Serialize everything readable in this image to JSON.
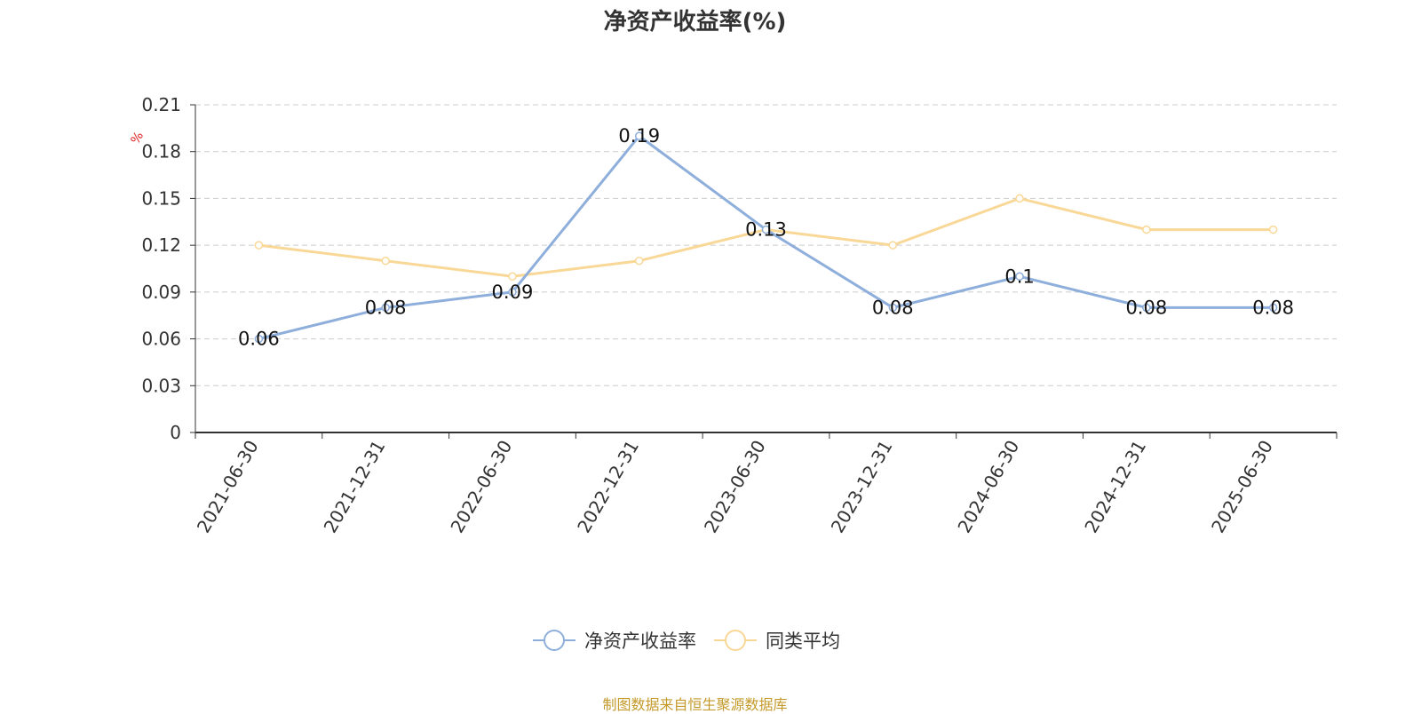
{
  "title": "净资产收益率(%)",
  "source_note": "制图数据来自恒生聚源数据库",
  "colors": {
    "series1": "#8eaedb",
    "series2": "#f9d897",
    "unit": "#e02020",
    "axis": "#333333",
    "grid": "#cccccc"
  },
  "chart_data": {
    "type": "line",
    "title": "净资产收益率(%)",
    "ylabel": "%",
    "x": [
      "2021-06-30",
      "2021-12-31",
      "2022-06-30",
      "2022-12-31",
      "2023-06-30",
      "2023-12-31",
      "2024-06-30",
      "2024-12-31",
      "2025-06-30"
    ],
    "yticks": [
      "0",
      "0.03",
      "0.06",
      "0.09",
      "0.12",
      "0.15",
      "0.18",
      "0.21"
    ],
    "ylim": [
      0,
      0.21
    ],
    "grid": true,
    "legend_position": "bottom-center",
    "series": [
      {
        "name": "净资产收益率",
        "values": [
          0.06,
          0.08,
          0.09,
          0.19,
          0.13,
          0.08,
          0.1,
          0.08,
          0.08
        ],
        "labels": [
          "0.06",
          "0.08",
          "0.09",
          "0.19",
          "0.13",
          "0.08",
          "0.1",
          "0.08",
          "0.08"
        ]
      },
      {
        "name": "同类平均",
        "values": [
          0.12,
          0.11,
          0.1,
          0.11,
          0.13,
          0.12,
          0.15,
          0.13,
          0.13
        ]
      }
    ]
  }
}
